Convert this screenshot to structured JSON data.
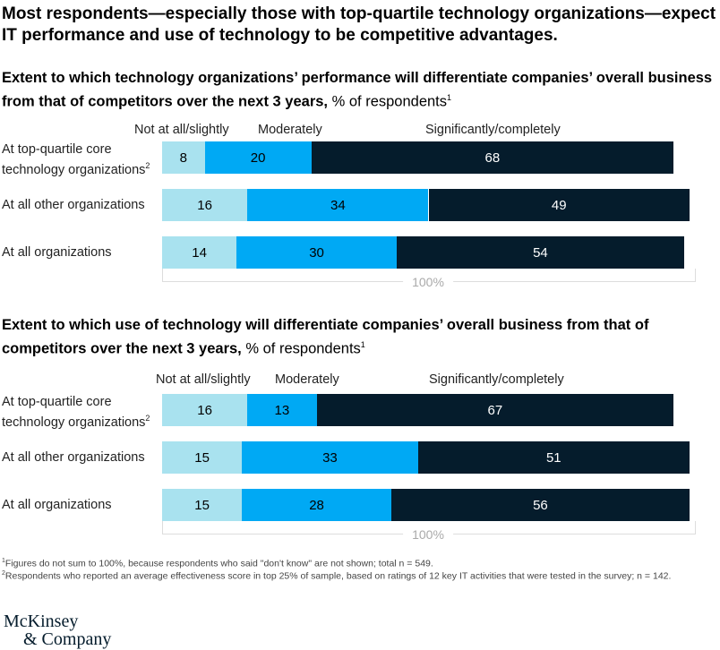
{
  "title": "Most respondents—especially those with top-quartile technology organizations—expect IT performance and use of technology to be competitive advantages.",
  "logo": {
    "line1": "McKinsey",
    "line2": "& Company"
  },
  "colors": {
    "light": "#a9e2ef",
    "mid": "#00a9f4",
    "dark": "#051c2c"
  },
  "footnotes": [
    "Figures do not sum to 100%, because respondents who said \"don't know\" are not shown; total n = 549.",
    "Respondents who reported an average effectiveness score in top 25% of sample, based on ratings of 12 key IT activities that were tested in the survey; n = 142."
  ],
  "chart_data": [
    {
      "type": "bar",
      "stacked": true,
      "orientation": "horizontal",
      "title_bold": "Extent to which technology organizations’ performance will differentiate companies’ overall business from that of competitors over the next 3 years,",
      "title_rest": " % of respondents",
      "legend": [
        "Not at all/slightly",
        "Moderately",
        "Significantly/completely"
      ],
      "categories": [
        "At top-quartile core technology organizations",
        "At all other organizations",
        "At all organizations"
      ],
      "series": [
        {
          "name": "Not at all/slightly",
          "values": [
            8,
            16,
            14
          ]
        },
        {
          "name": "Moderately",
          "values": [
            20,
            34,
            30
          ]
        },
        {
          "name": "Significantly/completely",
          "values": [
            68,
            49,
            54
          ]
        }
      ],
      "total_label": "100%",
      "xlim": [
        0,
        100
      ]
    },
    {
      "type": "bar",
      "stacked": true,
      "orientation": "horizontal",
      "title_bold": "Extent to which use of technology will differentiate companies’ overall business from that of competitors over the next 3 years,",
      "title_rest": " % of respondents",
      "legend": [
        "Not at all/slightly",
        "Moderately",
        "Significantly/completely"
      ],
      "categories": [
        "At top-quartile core technology organizations",
        "At all other organizations",
        "At all organizations"
      ],
      "series": [
        {
          "name": "Not at all/slightly",
          "values": [
            16,
            15,
            15
          ]
        },
        {
          "name": "Moderately",
          "values": [
            13,
            33,
            28
          ]
        },
        {
          "name": "Significantly/completely",
          "values": [
            67,
            51,
            56
          ]
        }
      ],
      "total_label": "100%",
      "xlim": [
        0,
        100
      ]
    }
  ]
}
